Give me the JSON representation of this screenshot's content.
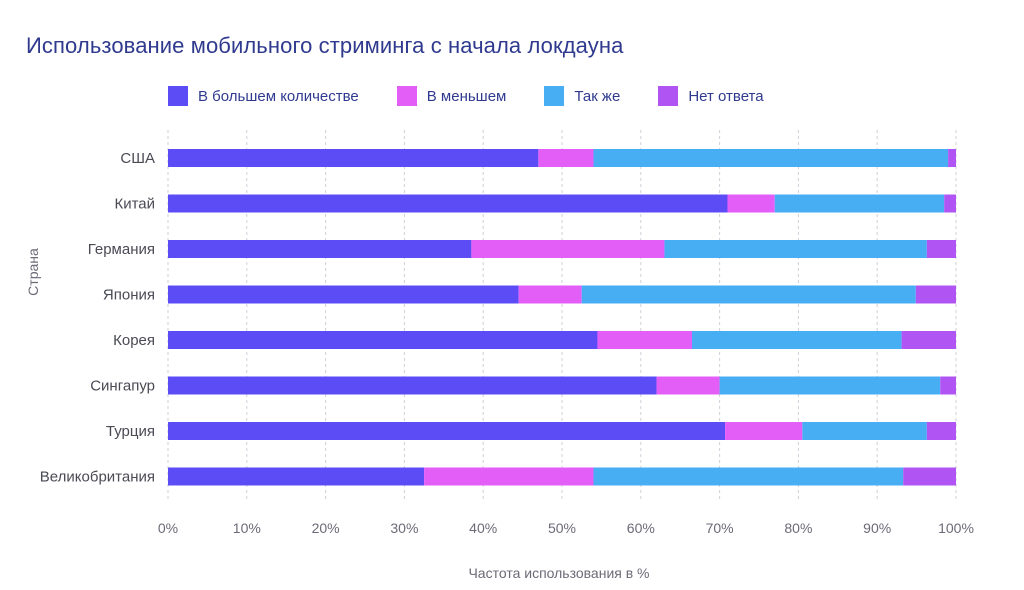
{
  "chart_data": {
    "type": "bar",
    "orientation": "horizontal",
    "stacked": true,
    "title": "Использование мобильного стриминга с начала локдауна",
    "xlabel": "Частота использования в %",
    "ylabel": "Страна",
    "xlim": [
      0,
      100
    ],
    "xticks": [
      "0%",
      "10%",
      "20%",
      "30%",
      "40%",
      "50%",
      "60%",
      "70%",
      "80%",
      "90%",
      "100%"
    ],
    "grid": "vertical-dashed",
    "legend_position": "top",
    "categories": [
      "США",
      "Китай",
      "Германия",
      "Япония",
      "Корея",
      "Сингапур",
      "Турция",
      "Великобритания"
    ],
    "series": [
      {
        "name": "В большем количестве",
        "color": "#5b4cf5",
        "values": [
          47,
          71,
          38.5,
          44.5,
          54.5,
          62,
          70.7,
          32.5
        ]
      },
      {
        "name": "В меньшем",
        "color": "#e35ef7",
        "values": [
          7,
          6,
          24.5,
          8,
          12,
          8,
          9.8,
          21.5
        ]
      },
      {
        "name": "Так же",
        "color": "#47aef4",
        "values": [
          45,
          21.5,
          33.3,
          42.4,
          26.6,
          28,
          15.8,
          39.3
        ]
      },
      {
        "name": "Нет ответа",
        "color": "#b055f3",
        "values": [
          1,
          1.5,
          3.7,
          5.1,
          6.9,
          2,
          3.7,
          6.7
        ]
      }
    ]
  }
}
